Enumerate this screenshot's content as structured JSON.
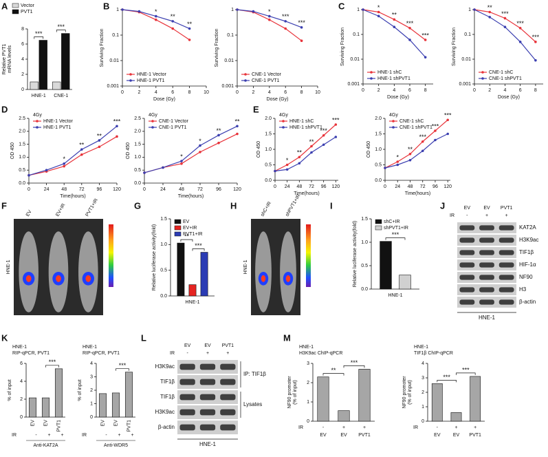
{
  "panel_labels": [
    "A",
    "B",
    "C",
    "D",
    "E",
    "F",
    "G",
    "H",
    "I",
    "J",
    "K",
    "L",
    "M"
  ],
  "chart_data": [
    {
      "type": "bar",
      "ylabel": [
        "Relative PVT1",
        "mRNA levels"
      ],
      "categories": [
        "HNE-1",
        "CNE-1"
      ],
      "series": [
        {
          "name": "Vector",
          "color": "#d9d9d9",
          "values": [
            1,
            1
          ]
        },
        {
          "name": "PVT1",
          "color": "#111111",
          "values": [
            6.5,
            7.4
          ]
        }
      ],
      "ylim": [
        0,
        8
      ],
      "yticks": [
        0,
        2,
        4,
        6,
        8
      ],
      "legend": "top",
      "significance": [
        "***",
        "***"
      ]
    },
    {
      "type": "line",
      "xlabel": "Dose (Gy)",
      "ylabel": "Surviving Fraction",
      "log_y": true,
      "x": [
        0,
        2,
        4,
        6,
        8
      ],
      "xlim": [
        0,
        10
      ],
      "xticks": [
        0,
        2,
        4,
        6,
        8,
        10
      ],
      "ylim": [
        0.001,
        1
      ],
      "yticks": [
        0.001,
        0.01,
        0.1,
        1
      ],
      "legend": "lower left",
      "significance": [
        "*",
        "**",
        "**"
      ],
      "series": [
        {
          "name": "HNE-1 Vector",
          "color": "#e8333a",
          "values": [
            1,
            0.8,
            0.4,
            0.18,
            0.065
          ]
        },
        {
          "name": "HNE-1 PVT1",
          "color": "#3b3fb0",
          "values": [
            1,
            0.85,
            0.55,
            0.35,
            0.18
          ]
        }
      ]
    },
    {
      "type": "line",
      "xlabel": "Dose (Gy)",
      "ylabel": "Surviving Fraction",
      "log_y": true,
      "x": [
        0,
        2,
        4,
        6,
        8
      ],
      "xlim": [
        0,
        10
      ],
      "xticks": [
        0,
        2,
        4,
        6,
        8,
        10
      ],
      "ylim": [
        0.001,
        1
      ],
      "yticks": [
        0.001,
        0.01,
        0.1,
        1
      ],
      "legend": "lower left",
      "significance": [
        "*",
        "***",
        "***"
      ],
      "series": [
        {
          "name": "CNE-1 Vector",
          "color": "#e8333a",
          "values": [
            1,
            0.8,
            0.4,
            0.18,
            0.06
          ]
        },
        {
          "name": "CNE-1 PVT1",
          "color": "#3b3fb0",
          "values": [
            1,
            0.85,
            0.55,
            0.35,
            0.2
          ]
        }
      ]
    },
    {
      "type": "line",
      "xlabel": "Dose (Gy)",
      "ylabel": "Surviving Fraction",
      "log_y": true,
      "x": [
        0,
        2,
        4,
        6,
        8
      ],
      "xlim": [
        0,
        9
      ],
      "xticks": [
        0,
        2,
        4,
        6,
        8
      ],
      "ylim": [
        0.001,
        1
      ],
      "yticks": [
        0.001,
        0.01,
        0.1,
        1
      ],
      "legend": "lower left",
      "significance": [
        "*",
        "**",
        "***",
        "***"
      ],
      "series": [
        {
          "name": "HNE-1 shC",
          "color": "#e8333a",
          "values": [
            1,
            0.8,
            0.4,
            0.18,
            0.06
          ]
        },
        {
          "name": "HNE-1 shPVT1",
          "color": "#3b3fb0",
          "values": [
            1,
            0.55,
            0.2,
            0.06,
            0.012
          ]
        }
      ]
    },
    {
      "type": "line",
      "xlabel": "Dose (Gy)",
      "ylabel": "Surviving Fraction",
      "log_y": true,
      "x": [
        0,
        2,
        4,
        6,
        8
      ],
      "xlim": [
        0,
        9
      ],
      "xticks": [
        0,
        2,
        4,
        6,
        8
      ],
      "ylim": [
        0.001,
        1
      ],
      "yticks": [
        0.001,
        0.01,
        0.1,
        1
      ],
      "legend": "lower left",
      "significance": [
        "**",
        "***",
        "***",
        "***"
      ],
      "series": [
        {
          "name": "CNE-1 shC",
          "color": "#e8333a",
          "values": [
            1,
            0.8,
            0.45,
            0.18,
            0.05
          ]
        },
        {
          "name": "CNE-1 shPVT1",
          "color": "#3b3fb0",
          "values": [
            1,
            0.5,
            0.2,
            0.05,
            0.009
          ]
        }
      ]
    },
    {
      "type": "line",
      "annotation": "4Gy",
      "xlabel": "Time(hours)",
      "ylabel": "OD 450",
      "x": [
        0,
        24,
        48,
        72,
        96,
        120
      ],
      "xlim": [
        0,
        120
      ],
      "xticks": [
        0,
        24,
        48,
        72,
        96,
        120
      ],
      "ylim": [
        0,
        2.5
      ],
      "yticks": [
        {
          "value": 0,
          "label": "0.0"
        },
        0.5,
        {
          "value": 1,
          "label": "1.0"
        },
        1.5,
        {
          "value": 2,
          "label": "2.0"
        },
        2.5
      ],
      "legend": "upper left",
      "significance": [
        "*",
        "**",
        "**",
        "***"
      ],
      "series": [
        {
          "name": "HNE-1 Vector",
          "color": "#e8333a",
          "values": [
            0.3,
            0.45,
            0.65,
            1.1,
            1.4,
            1.8
          ]
        },
        {
          "name": "HNE-1 PVT1",
          "color": "#3b3fb0",
          "values": [
            0.3,
            0.5,
            0.75,
            1.3,
            1.65,
            2.2
          ]
        }
      ]
    },
    {
      "type": "line",
      "annotation": "4Gy",
      "xlabel": "Time(hours)",
      "ylabel": "OD 450",
      "x": [
        0,
        24,
        48,
        72,
        96,
        120
      ],
      "xlim": [
        0,
        120
      ],
      "xticks": [
        0,
        24,
        48,
        72,
        96,
        120
      ],
      "ylim": [
        0,
        2.5
      ],
      "yticks": [
        {
          "value": 0,
          "label": "0.0"
        },
        0.5,
        {
          "value": 1,
          "label": "1.0"
        },
        1.5,
        {
          "value": 2,
          "label": "2.0"
        },
        2.5
      ],
      "legend": "upper left",
      "significance": [
        "*",
        "*",
        "**",
        "**"
      ],
      "series": [
        {
          "name": "CNE-1 Vector",
          "color": "#e8333a",
          "values": [
            0.4,
            0.6,
            0.75,
            1.2,
            1.55,
            1.9
          ]
        },
        {
          "name": "CNE-1 PVT1",
          "color": "#3b3fb0",
          "values": [
            0.4,
            0.6,
            0.85,
            1.45,
            1.85,
            2.2
          ]
        }
      ]
    },
    {
      "type": "line",
      "annotation": "4Gy",
      "xlabel": "Time(hours)",
      "ylabel": "OD 450",
      "x": [
        0,
        24,
        48,
        72,
        96,
        120
      ],
      "xlim": [
        0,
        125
      ],
      "xticks": [
        0,
        24,
        48,
        72,
        96,
        120
      ],
      "ylim": [
        0,
        2
      ],
      "yticks": [
        {
          "value": 0,
          "label": "0.0"
        },
        0.5,
        {
          "value": 1,
          "label": "1.0"
        },
        1.5,
        {
          "value": 2,
          "label": "2.0"
        }
      ],
      "legend": "upper left",
      "significance": [
        "*",
        "**",
        "**",
        "***",
        "***"
      ],
      "series": [
        {
          "name": "HNE-1 shC",
          "color": "#e8333a",
          "values": [
            0.3,
            0.5,
            0.75,
            1.1,
            1.45,
            1.8
          ]
        },
        {
          "name": "HNE-1 shPVT1",
          "color": "#3b3fb0",
          "values": [
            0.3,
            0.35,
            0.55,
            0.9,
            1.15,
            1.4
          ]
        }
      ]
    },
    {
      "type": "line",
      "annotation": "4Gy",
      "xlabel": "Time(hours)",
      "ylabel": "OD 450",
      "x": [
        0,
        24,
        48,
        72,
        96,
        120
      ],
      "xlim": [
        0,
        125
      ],
      "xticks": [
        0,
        24,
        48,
        72,
        96,
        120
      ],
      "ylim": [
        0,
        2
      ],
      "yticks": [
        {
          "value": 0,
          "label": "0.0"
        },
        0.5,
        {
          "value": 1,
          "label": "1.0"
        },
        1.5,
        {
          "value": 2,
          "label": "2.0"
        }
      ],
      "legend": "upper left",
      "significance": [
        "*",
        "**",
        "***",
        "***",
        "***"
      ],
      "series": [
        {
          "name": "CNE-1 shC",
          "color": "#e8333a",
          "values": [
            0.4,
            0.6,
            0.85,
            1.25,
            1.6,
            1.95
          ]
        },
        {
          "name": "CNE-1 shPVT1",
          "color": "#3b3fb0",
          "values": [
            0.4,
            0.5,
            0.65,
            0.95,
            1.3,
            1.5
          ]
        }
      ]
    },
    {
      "type": "bar",
      "ylabel": "Relative luciferase activity(fold)",
      "categories": [
        "HNE-1"
      ],
      "series": [
        {
          "name": "EV",
          "color": "#111111",
          "values": [
            1.03
          ]
        },
        {
          "name": "EV+IR",
          "color": "#e52421",
          "values": [
            0.22
          ]
        },
        {
          "name": "PVT1+IR",
          "color": "#2b3cb4",
          "values": [
            0.85
          ]
        }
      ],
      "ylim": [
        0,
        1.5
      ],
      "yticks": [
        {
          "value": 0,
          "label": "0.0"
        },
        0.5,
        {
          "value": 1,
          "label": "1.0"
        },
        1.5
      ],
      "legend": "upper left",
      "significance": [
        "**",
        "***"
      ]
    },
    {
      "type": "bar",
      "ylabel": "Relative luciferase activity(fold)",
      "categories": [
        "HNE-1"
      ],
      "series": [
        {
          "name": "shC+IR",
          "color": "#111111",
          "values": [
            1.02
          ]
        },
        {
          "name": "shPVT1+IR",
          "color": "#d0d0d0",
          "values": [
            0.3
          ]
        }
      ],
      "ylim": [
        0,
        1.5
      ],
      "yticks": [
        {
          "value": 0,
          "label": "0.0"
        },
        0.5,
        {
          "value": 1,
          "label": "1.0"
        },
        1.5
      ],
      "legend": "upper left",
      "significance": [
        "***"
      ]
    },
    {
      "type": "bar",
      "title": "HNE-1",
      "subtitle": "RIP-qPCR, PVT1",
      "ylabel": "% of input",
      "xlabel": "Anti-KAT2A",
      "categories": [
        "EV",
        "EV",
        "PVT1"
      ],
      "rotate_labels": true,
      "ir_label": "IR",
      "ir": [
        "-",
        "+",
        "+"
      ],
      "values": [
        2.15,
        2.15,
        5.4
      ],
      "color": "#a6a6a6",
      "ylim": [
        0,
        6
      ],
      "yticks": [
        0,
        2,
        4,
        6
      ],
      "significance": [
        "***"
      ]
    },
    {
      "type": "bar",
      "title": "HNE-1",
      "subtitle": "RIP-qPCR, PVT1",
      "ylabel": "% of input",
      "xlabel": "Anti-WDR5",
      "categories": [
        "EV",
        "EV",
        "PVT1"
      ],
      "rotate_labels": true,
      "ir_label": "IR",
      "ir": [
        "-",
        "+",
        "+"
      ],
      "values": [
        1.75,
        1.8,
        3.35
      ],
      "color": "#a6a6a6",
      "ylim": [
        0,
        4
      ],
      "yticks": [
        0,
        1,
        2,
        3,
        4
      ],
      "significance": [
        "***"
      ]
    },
    {
      "type": "bar",
      "title": "HNE-1",
      "subtitle": "H3K9ac ChIP-qPCR",
      "ylabel": [
        "NF90  promoter",
        "(% of input)"
      ],
      "categories": [
        "EV",
        "EV",
        "PVT1"
      ],
      "ir_label": "IR",
      "ir": [
        "-",
        "+",
        "+"
      ],
      "values": [
        2.3,
        0.55,
        2.7
      ],
      "color": "#a6a6a6",
      "ylim": [
        0,
        3
      ],
      "yticks": [
        0,
        1,
        2,
        3
      ],
      "significance": [
        "**",
        "***"
      ]
    },
    {
      "type": "bar",
      "title": "HNE-1",
      "subtitle": "TIF1β ChIP-qPCR",
      "ylabel": [
        "NF90  promoter",
        "(% of input)"
      ],
      "categories": [
        "EV",
        "EV",
        "PVT1"
      ],
      "ir_label": "IR",
      "ir": [
        "-",
        "+",
        "+"
      ],
      "values": [
        2.6,
        0.6,
        3.1
      ],
      "color": "#a6a6a6",
      "ylim": [
        0,
        4
      ],
      "yticks": [
        0,
        1,
        2,
        3,
        4
      ],
      "significance": [
        "***",
        "***"
      ]
    }
  ],
  "images": {
    "F": {
      "lanes": [
        "EV",
        "EV+IR",
        "PVT1+IR"
      ],
      "cell": "HNE-1"
    },
    "H": {
      "lanes": [
        "shC+IR",
        "shPVT1+IR"
      ],
      "cell": "HNE-1"
    },
    "J": {
      "lanes": [
        "EV",
        "EV",
        "PVT1"
      ],
      "ir_label": "IR",
      "ir": [
        "-",
        "+",
        "+"
      ],
      "bands": [
        "KAT2A",
        "H3K9ac",
        "TIF1β",
        "HIF-1α",
        "NF90",
        "H3",
        "β-actin"
      ],
      "cell": "HNE-1"
    },
    "L": {
      "lanes": [
        "EV",
        "EV",
        "PVT1"
      ],
      "ir_label": "IR",
      "ir": [
        "-",
        "+",
        "+"
      ],
      "bands": [
        "H3K9ac",
        "TIF1β",
        "TIF1β",
        "H3K9ac",
        "β-actin"
      ],
      "groups": [
        "IP: TIF1β",
        "Lysates"
      ],
      "cell": "HNE-1"
    }
  }
}
